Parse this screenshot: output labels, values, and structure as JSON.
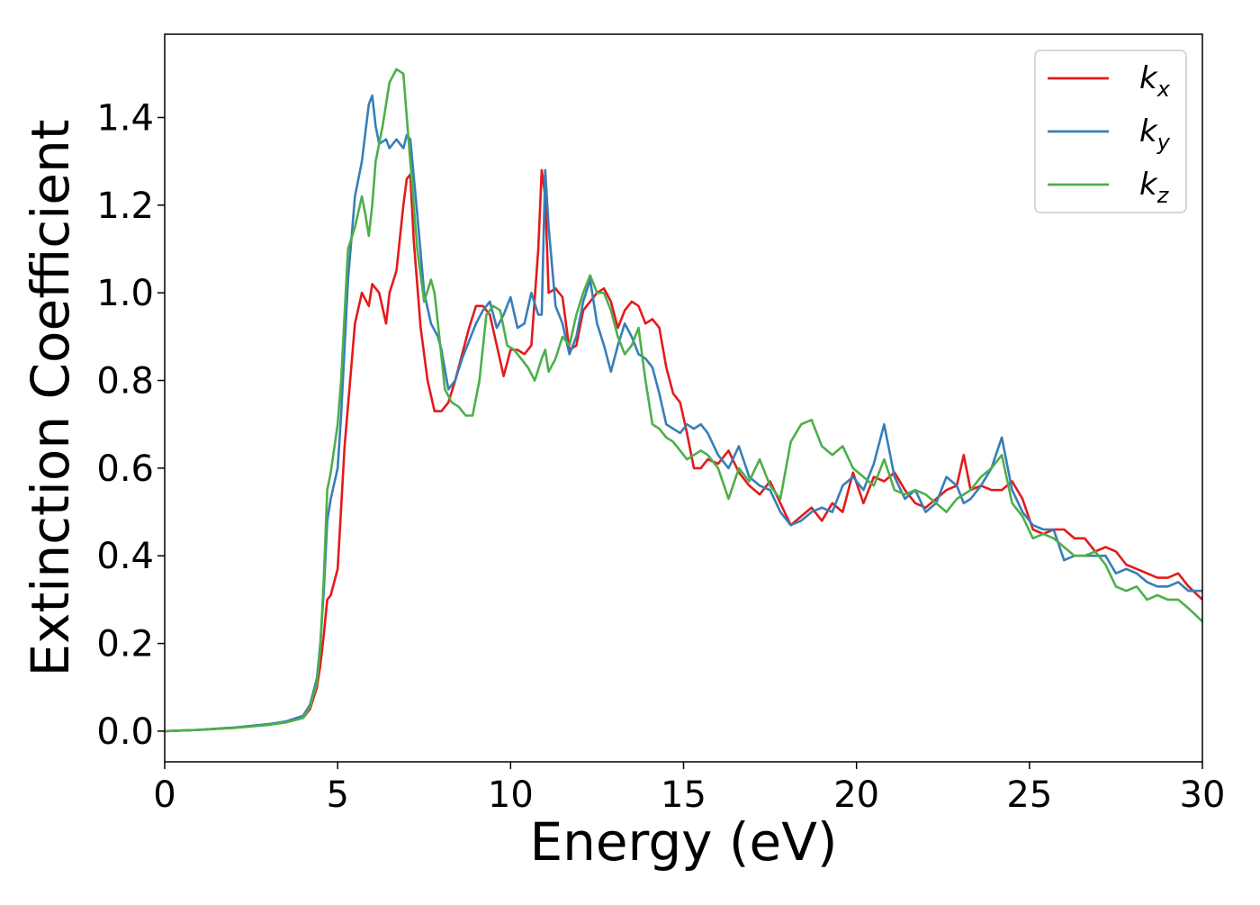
{
  "chart_data": {
    "type": "line",
    "title": "",
    "xlabel": "Energy (eV)",
    "ylabel": "Extinction Coefficient",
    "xlim": [
      0,
      30
    ],
    "ylim": [
      -0.07,
      1.59
    ],
    "xticks": [
      0,
      5,
      10,
      15,
      20,
      25,
      30
    ],
    "xtick_labels": [
      "0",
      "5",
      "10",
      "15",
      "20",
      "25",
      "30"
    ],
    "yticks": [
      0.0,
      0.2,
      0.4,
      0.6,
      0.8,
      1.0,
      1.2,
      1.4
    ],
    "ytick_labels": [
      "0.0",
      "0.2",
      "0.4",
      "0.6",
      "0.8",
      "1.0",
      "1.2",
      "1.4"
    ],
    "grid": false,
    "legend_position": "top-right",
    "series": [
      {
        "name": "k",
        "subscript": "x",
        "color": "#e41a1c",
        "x": [
          0,
          1,
          2,
          3,
          3.5,
          4,
          4.2,
          4.4,
          4.5,
          4.6,
          4.7,
          4.8,
          5,
          5.2,
          5.5,
          5.7,
          5.9,
          6.0,
          6.2,
          6.4,
          6.5,
          6.7,
          6.9,
          7.0,
          7.1,
          7.2,
          7.4,
          7.6,
          7.8,
          8.0,
          8.2,
          8.4,
          8.6,
          8.8,
          9.0,
          9.2,
          9.4,
          9.6,
          9.8,
          10.0,
          10.2,
          10.4,
          10.6,
          10.8,
          10.9,
          11.0,
          11.1,
          11.3,
          11.5,
          11.7,
          11.9,
          12.1,
          12.3,
          12.5,
          12.7,
          12.9,
          13.1,
          13.3,
          13.5,
          13.7,
          13.9,
          14.1,
          14.3,
          14.5,
          14.7,
          14.9,
          15.1,
          15.3,
          15.5,
          15.7,
          16.0,
          16.3,
          16.6,
          16.9,
          17.2,
          17.5,
          17.8,
          18.1,
          18.4,
          18.7,
          19.0,
          19.3,
          19.6,
          19.9,
          20.2,
          20.5,
          20.8,
          21.1,
          21.4,
          21.7,
          22.0,
          22.3,
          22.6,
          22.9,
          23.1,
          23.3,
          23.6,
          23.9,
          24.2,
          24.5,
          24.8,
          25.1,
          25.4,
          25.7,
          26.0,
          26.3,
          26.6,
          26.9,
          27.2,
          27.5,
          27.8,
          28.1,
          28.4,
          28.7,
          29.0,
          29.3,
          29.6,
          30.0
        ],
        "values": [
          0.0,
          0.003,
          0.008,
          0.015,
          0.02,
          0.03,
          0.05,
          0.1,
          0.15,
          0.22,
          0.3,
          0.31,
          0.37,
          0.65,
          0.93,
          1.0,
          0.97,
          1.02,
          1.0,
          0.93,
          1.0,
          1.05,
          1.2,
          1.26,
          1.27,
          1.12,
          0.92,
          0.8,
          0.73,
          0.73,
          0.75,
          0.8,
          0.86,
          0.92,
          0.97,
          0.97,
          0.95,
          0.88,
          0.81,
          0.87,
          0.87,
          0.86,
          0.88,
          1.1,
          1.28,
          1.22,
          1.0,
          1.01,
          0.99,
          0.87,
          0.88,
          0.96,
          0.98,
          1.0,
          1.01,
          0.98,
          0.92,
          0.96,
          0.98,
          0.97,
          0.93,
          0.94,
          0.92,
          0.83,
          0.77,
          0.75,
          0.68,
          0.6,
          0.6,
          0.62,
          0.61,
          0.64,
          0.59,
          0.56,
          0.54,
          0.57,
          0.52,
          0.47,
          0.49,
          0.51,
          0.48,
          0.52,
          0.5,
          0.59,
          0.52,
          0.58,
          0.57,
          0.59,
          0.55,
          0.52,
          0.51,
          0.53,
          0.55,
          0.56,
          0.63,
          0.55,
          0.56,
          0.55,
          0.55,
          0.57,
          0.53,
          0.46,
          0.45,
          0.46,
          0.46,
          0.44,
          0.44,
          0.41,
          0.42,
          0.41,
          0.38,
          0.37,
          0.36,
          0.35,
          0.35,
          0.36,
          0.33,
          0.3
        ]
      },
      {
        "name": "k",
        "subscript": "y",
        "color": "#377eb8",
        "x": [
          0,
          1,
          2,
          3,
          3.5,
          4,
          4.2,
          4.4,
          4.5,
          4.6,
          4.7,
          4.8,
          5,
          5.1,
          5.3,
          5.5,
          5.7,
          5.9,
          6.0,
          6.1,
          6.2,
          6.4,
          6.5,
          6.7,
          6.9,
          7.0,
          7.1,
          7.3,
          7.5,
          7.7,
          7.9,
          8.0,
          8.2,
          8.4,
          8.6,
          8.8,
          9.0,
          9.2,
          9.4,
          9.6,
          9.8,
          10.0,
          10.2,
          10.4,
          10.6,
          10.8,
          10.9,
          11.0,
          11.1,
          11.3,
          11.5,
          11.7,
          11.9,
          12.1,
          12.3,
          12.5,
          12.7,
          12.9,
          13.1,
          13.3,
          13.5,
          13.7,
          13.9,
          14.1,
          14.3,
          14.5,
          14.7,
          14.9,
          15.1,
          15.3,
          15.5,
          15.7,
          16.0,
          16.3,
          16.6,
          16.9,
          17.2,
          17.5,
          17.8,
          18.1,
          18.4,
          18.7,
          19.0,
          19.3,
          19.6,
          19.9,
          20.2,
          20.5,
          20.8,
          21.1,
          21.4,
          21.7,
          22.0,
          22.3,
          22.6,
          22.9,
          23.1,
          23.3,
          23.6,
          23.9,
          24.2,
          24.5,
          24.8,
          25.1,
          25.4,
          25.7,
          26.0,
          26.3,
          26.6,
          26.9,
          27.2,
          27.5,
          27.8,
          28.1,
          28.4,
          28.7,
          29.0,
          29.3,
          29.6,
          30.0
        ],
        "values": [
          0.0,
          0.003,
          0.008,
          0.016,
          0.022,
          0.035,
          0.06,
          0.12,
          0.2,
          0.32,
          0.48,
          0.53,
          0.6,
          0.72,
          1.03,
          1.22,
          1.3,
          1.43,
          1.45,
          1.38,
          1.34,
          1.35,
          1.33,
          1.35,
          1.33,
          1.36,
          1.35,
          1.18,
          1.0,
          0.93,
          0.9,
          0.87,
          0.78,
          0.8,
          0.85,
          0.89,
          0.93,
          0.96,
          0.98,
          0.92,
          0.95,
          0.99,
          0.92,
          0.93,
          1.0,
          0.95,
          0.95,
          1.28,
          1.15,
          0.97,
          0.93,
          0.86,
          0.9,
          0.98,
          1.03,
          0.93,
          0.88,
          0.82,
          0.88,
          0.93,
          0.9,
          0.86,
          0.85,
          0.83,
          0.77,
          0.7,
          0.69,
          0.68,
          0.7,
          0.69,
          0.7,
          0.68,
          0.63,
          0.6,
          0.65,
          0.58,
          0.56,
          0.55,
          0.5,
          0.47,
          0.48,
          0.5,
          0.51,
          0.5,
          0.56,
          0.58,
          0.55,
          0.61,
          0.7,
          0.58,
          0.53,
          0.55,
          0.5,
          0.52,
          0.58,
          0.56,
          0.52,
          0.53,
          0.56,
          0.6,
          0.67,
          0.55,
          0.5,
          0.47,
          0.46,
          0.46,
          0.39,
          0.4,
          0.4,
          0.4,
          0.4,
          0.36,
          0.37,
          0.36,
          0.34,
          0.33,
          0.33,
          0.34,
          0.32,
          0.32
        ]
      },
      {
        "name": "k",
        "subscript": "z",
        "color": "#4daf4a",
        "x": [
          0,
          1,
          2,
          3,
          3.5,
          4,
          4.2,
          4.4,
          4.5,
          4.6,
          4.7,
          4.8,
          5,
          5.1,
          5.3,
          5.5,
          5.7,
          5.8,
          5.9,
          6.0,
          6.1,
          6.3,
          6.5,
          6.7,
          6.9,
          7.0,
          7.1,
          7.3,
          7.5,
          7.7,
          7.8,
          7.9,
          8.1,
          8.3,
          8.5,
          8.7,
          8.9,
          9.1,
          9.3,
          9.5,
          9.7,
          9.9,
          10.1,
          10.3,
          10.5,
          10.7,
          10.9,
          11.0,
          11.1,
          11.3,
          11.5,
          11.7,
          11.9,
          12.1,
          12.3,
          12.5,
          12.7,
          12.9,
          13.1,
          13.3,
          13.5,
          13.7,
          13.9,
          14.1,
          14.3,
          14.5,
          14.7,
          14.9,
          15.1,
          15.3,
          15.5,
          15.7,
          16.0,
          16.3,
          16.6,
          16.9,
          17.2,
          17.5,
          17.8,
          18.1,
          18.4,
          18.7,
          19.0,
          19.3,
          19.6,
          19.9,
          20.2,
          20.5,
          20.8,
          21.1,
          21.4,
          21.7,
          22.0,
          22.3,
          22.6,
          22.9,
          23.1,
          23.3,
          23.6,
          23.9,
          24.2,
          24.5,
          24.8,
          25.1,
          25.4,
          25.7,
          26.0,
          26.3,
          26.6,
          26.9,
          27.2,
          27.5,
          27.8,
          28.1,
          28.4,
          28.7,
          29.0,
          29.3,
          29.6,
          30.0
        ],
        "values": [
          0.0,
          0.003,
          0.007,
          0.014,
          0.02,
          0.03,
          0.055,
          0.11,
          0.19,
          0.35,
          0.55,
          0.59,
          0.7,
          0.8,
          1.1,
          1.15,
          1.22,
          1.18,
          1.13,
          1.2,
          1.3,
          1.38,
          1.48,
          1.51,
          1.5,
          1.4,
          1.3,
          1.1,
          0.98,
          1.03,
          1.0,
          0.93,
          0.78,
          0.75,
          0.74,
          0.72,
          0.72,
          0.8,
          0.95,
          0.97,
          0.96,
          0.88,
          0.87,
          0.85,
          0.83,
          0.8,
          0.85,
          0.87,
          0.82,
          0.85,
          0.9,
          0.88,
          0.95,
          1.0,
          1.04,
          1.0,
          1.0,
          0.96,
          0.9,
          0.86,
          0.88,
          0.92,
          0.8,
          0.7,
          0.69,
          0.67,
          0.66,
          0.64,
          0.62,
          0.63,
          0.64,
          0.63,
          0.6,
          0.53,
          0.6,
          0.57,
          0.62,
          0.56,
          0.53,
          0.66,
          0.7,
          0.71,
          0.65,
          0.63,
          0.65,
          0.6,
          0.58,
          0.56,
          0.62,
          0.55,
          0.54,
          0.55,
          0.54,
          0.52,
          0.5,
          0.53,
          0.54,
          0.55,
          0.58,
          0.6,
          0.63,
          0.52,
          0.49,
          0.44,
          0.45,
          0.44,
          0.42,
          0.4,
          0.4,
          0.41,
          0.38,
          0.33,
          0.32,
          0.33,
          0.3,
          0.31,
          0.3,
          0.3,
          0.28,
          0.25
        ]
      }
    ]
  }
}
